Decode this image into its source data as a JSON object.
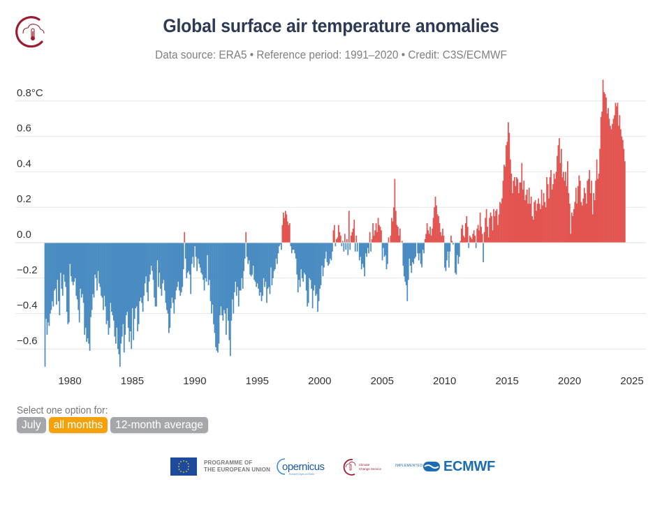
{
  "header": {
    "title": "Global surface air temperature anomalies",
    "subtitle": "Data source: ERA5 • Reference period: 1991–2020 • Credit: C3S/ECMWF",
    "logo": "climate-change-service-logo-icon"
  },
  "selector": {
    "label": "Select one option for:",
    "options": [
      {
        "label": "July",
        "active": false
      },
      {
        "label": "all months",
        "active": true
      },
      {
        "label": "12-month average",
        "active": false
      }
    ]
  },
  "footer": {
    "eu_text_line1": "PROGRAMME OF",
    "eu_text_line2": "THE EUROPEAN UNION",
    "copernicus": "opernicus",
    "copernicus_tagline": "Europe's eyes on Earth",
    "c3s_line1": "Climate",
    "c3s_line2": "Change Service",
    "implemented_by": "IMPLEMENTED BY",
    "ecmwf": "ECMWF"
  },
  "colors": {
    "positive": "#e35450",
    "negative": "#4a8cc2",
    "selected_option": "#f4a20c",
    "option": "#a5a7aa",
    "title": "#2d3a56"
  },
  "chart_data": {
    "type": "bar",
    "title": "Global surface air temperature anomalies",
    "subtitle": "Data source: ERA5 • Reference period: 1991–2020 • Credit: C3S/ECMWF",
    "xlabel": "",
    "ylabel": "°C",
    "ylim": [
      -0.7,
      0.9
    ],
    "y_ticks": [
      {
        "value": 0.8,
        "label": "0.8°C"
      },
      {
        "value": 0.6,
        "label": "0.6"
      },
      {
        "value": 0.4,
        "label": "0.4"
      },
      {
        "value": 0.2,
        "label": "0.2"
      },
      {
        "value": 0.0,
        "label": "0.0"
      },
      {
        "value": -0.2,
        "label": "−0.2"
      },
      {
        "value": -0.4,
        "label": "−0.4"
      },
      {
        "value": -0.6,
        "label": "−0.6"
      }
    ],
    "x_ticks": [
      "1980",
      "1985",
      "1990",
      "1995",
      "2000",
      "2005",
      "2010",
      "2015",
      "2020",
      "2025"
    ],
    "grid": true,
    "legend": "none",
    "series_frequency": "monthly",
    "start": "1979-01",
    "monthly_values_by_year": {
      "1979": [
        -0.7,
        -0.43,
        -0.52,
        -0.45,
        -0.47,
        -0.4,
        -0.38,
        -0.33,
        -0.36,
        -0.27,
        -0.26,
        -0.35
      ],
      "1980": [
        -0.21,
        -0.33,
        -0.41,
        -0.17,
        -0.26,
        -0.3,
        -0.18,
        -0.22,
        -0.25,
        -0.39,
        -0.46,
        -0.45
      ],
      "1981": [
        -0.12,
        -0.19,
        -0.22,
        -0.24,
        -0.22,
        -0.2,
        -0.3,
        -0.32,
        -0.38,
        -0.45,
        -0.26,
        -0.31
      ],
      "1982": [
        -0.29,
        -0.34,
        -0.52,
        -0.48,
        -0.56,
        -0.54,
        -0.57,
        -0.61,
        -0.42,
        -0.38,
        -0.29,
        -0.31
      ],
      "1983": [
        -0.18,
        -0.2,
        -0.27,
        -0.16,
        -0.23,
        -0.25,
        -0.3,
        -0.31,
        -0.38,
        -0.3,
        -0.36,
        -0.46
      ],
      "1984": [
        -0.44,
        -0.52,
        -0.48,
        -0.34,
        -0.39,
        -0.41,
        -0.44,
        -0.53,
        -0.57,
        -0.48,
        -0.6,
        -0.63
      ],
      "1985": [
        -0.7,
        -0.57,
        -0.53,
        -0.46,
        -0.62,
        -0.52,
        -0.41,
        -0.39,
        -0.48,
        -0.56,
        -0.5,
        -0.6
      ],
      "1986": [
        -0.37,
        -0.55,
        -0.43,
        -0.37,
        -0.36,
        -0.5,
        -0.46,
        -0.33,
        -0.31,
        -0.34,
        -0.39,
        -0.3
      ],
      "1987": [
        -0.23,
        -0.19,
        -0.28,
        -0.33,
        -0.22,
        -0.18,
        -0.13,
        -0.16,
        -0.21,
        -0.31,
        -0.36,
        -0.36
      ],
      "1988": [
        -0.1,
        -0.25,
        -0.17,
        -0.26,
        -0.3,
        -0.23,
        -0.21,
        -0.27,
        -0.34,
        -0.38,
        -0.4,
        -0.51
      ],
      "1989": [
        -0.48,
        -0.37,
        -0.31,
        -0.34,
        -0.4,
        -0.32,
        -0.27,
        -0.25,
        -0.22,
        -0.27,
        -0.3,
        -0.28
      ],
      "1990": [
        -0.25,
        -0.15,
        0.06,
        -0.09,
        -0.2,
        -0.17,
        -0.16,
        -0.18,
        -0.29,
        -0.12,
        -0.08,
        -0.14
      ],
      "1991": [
        -0.02,
        -0.08,
        -0.16,
        -0.09,
        -0.12,
        -0.14,
        -0.17,
        -0.18,
        -0.21,
        -0.27,
        -0.2,
        -0.22
      ],
      "1992": [
        -0.07,
        -0.24,
        -0.21,
        -0.33,
        -0.4,
        -0.35,
        -0.46,
        -0.51,
        -0.59,
        -0.61,
        -0.62,
        -0.57
      ],
      "1993": [
        -0.41,
        -0.36,
        -0.41,
        -0.44,
        -0.38,
        -0.4,
        -0.52,
        -0.37,
        -0.44,
        -0.55,
        -0.64,
        -0.44
      ],
      "1994": [
        -0.32,
        -0.4,
        -0.28,
        -0.22,
        -0.3,
        -0.25,
        -0.36,
        -0.27,
        -0.27,
        -0.2,
        -0.26,
        -0.16
      ],
      "1995": [
        -0.09,
        0.06,
        -0.08,
        -0.12,
        -0.1,
        -0.18,
        -0.19,
        -0.18,
        -0.13,
        -0.21,
        -0.22,
        -0.25
      ],
      "1996": [
        -0.23,
        -0.26,
        -0.3,
        -0.28,
        -0.33,
        -0.3,
        -0.2,
        -0.25,
        -0.22,
        -0.34,
        -0.26,
        -0.25
      ],
      "1997": [
        -0.29,
        -0.14,
        -0.24,
        -0.2,
        -0.16,
        -0.15,
        -0.09,
        -0.12,
        -0.06,
        -0.02,
        -0.01,
        -0.04
      ],
      "1998": [
        0.1,
        0.17,
        0.14,
        0.18,
        0.16,
        0.12,
        0.1,
        0.11,
        -0.02,
        -0.06,
        -0.04,
        -0.04
      ],
      "1999": [
        -0.06,
        -0.09,
        -0.18,
        -0.28,
        -0.21,
        -0.25,
        -0.15,
        -0.2,
        -0.22,
        -0.17,
        -0.18,
        -0.27
      ],
      "2000": [
        -0.36,
        -0.34,
        -0.2,
        -0.21,
        -0.26,
        -0.37,
        -0.27,
        -0.24,
        -0.3,
        -0.29,
        -0.39,
        -0.33
      ],
      "2001": [
        -0.26,
        -0.24,
        -0.13,
        -0.19,
        -0.14,
        -0.09,
        -0.05,
        -0.11,
        -0.13,
        -0.12,
        -0.09,
        -0.1
      ],
      "2002": [
        -0.05,
        0.07,
        0.1,
        -0.02,
        0.02,
        0.03,
        0.1,
        0.06,
        0.04,
        -0.02,
        0.01,
        -0.05
      ],
      "2003": [
        0.05,
        -0.04,
        0.02,
        -0.07,
        0.18,
        -0.04,
        0.04,
        0.06,
        0.08,
        0.13,
        -0.05,
        0.04
      ],
      "2004": [
        -0.05,
        0.0,
        -0.1,
        -0.08,
        -0.15,
        -0.12,
        -0.14,
        -0.19,
        -0.06,
        -0.08,
        -0.03,
        -0.06
      ],
      "2005": [
        0.06,
        -0.05,
        0.02,
        0.11,
        0.04,
        0.07,
        0.11,
        0.06,
        0.14,
        0.1,
        0.09,
        0.07
      ],
      "2006": [
        -0.1,
        -0.03,
        -0.08,
        -0.07,
        -0.15,
        -0.12,
        0.03,
        0.0,
        0.04,
        0.14,
        0.12,
        0.2
      ],
      "2007": [
        0.36,
        0.18,
        0.1,
        0.09,
        0.04,
        0.08,
        0.0,
        0.01,
        -0.13,
        -0.19,
        -0.22,
        -0.24
      ],
      "2008": [
        -0.33,
        -0.21,
        -0.09,
        -0.13,
        -0.17,
        -0.11,
        -0.12,
        -0.09,
        -0.08,
        0.0,
        -0.06,
        -0.1
      ],
      "2009": [
        -0.06,
        -0.12,
        -0.14,
        -0.04,
        -0.06,
        0.02,
        0.05,
        0.11,
        0.07,
        0.05,
        0.09,
        0.04
      ],
      "2010": [
        0.08,
        0.14,
        0.2,
        0.26,
        0.21,
        0.16,
        0.15,
        0.11,
        0.06,
        0.04,
        0.08,
        0.04
      ],
      "2011": [
        -0.14,
        -0.16,
        -0.1,
        -0.05,
        -0.14,
        -0.05,
        0.04,
        0.01,
        -0.01,
        0.0,
        -0.17,
        -0.18
      ],
      "2012": [
        -0.07,
        -0.12,
        -0.08,
        0.01,
        0.08,
        0.1,
        0.04,
        0.03,
        0.11,
        0.15,
        0.09,
        -0.03
      ],
      "2013": [
        0.04,
        0.03,
        0.02,
        0.05,
        0.07,
        0.04,
        -0.03,
        0.08,
        0.1,
        0.07,
        0.17,
        0.09
      ],
      "2014": [
        0.05,
        -0.11,
        0.06,
        0.14,
        0.19,
        0.09,
        0.03,
        0.14,
        0.17,
        0.15,
        0.07,
        0.19
      ],
      "2015": [
        0.15,
        0.18,
        0.19,
        0.1,
        0.16,
        0.23,
        0.22,
        0.25,
        0.35,
        0.44,
        0.43,
        0.55
      ],
      "2016": [
        0.57,
        0.68,
        0.62,
        0.47,
        0.39,
        0.28,
        0.35,
        0.37,
        0.32,
        0.37,
        0.36,
        0.28
      ],
      "2017": [
        0.34,
        0.34,
        0.45,
        0.3,
        0.35,
        0.24,
        0.27,
        0.3,
        0.22,
        0.31,
        0.22,
        0.26
      ],
      "2018": [
        0.15,
        0.13,
        0.23,
        0.24,
        0.18,
        0.22,
        0.25,
        0.22,
        0.19,
        0.3,
        0.21,
        0.28
      ],
      "2019": [
        0.23,
        0.2,
        0.37,
        0.33,
        0.25,
        0.37,
        0.41,
        0.3,
        0.33,
        0.39,
        0.36,
        0.4
      ],
      "2020": [
        0.49,
        0.55,
        0.59,
        0.45,
        0.53,
        0.37,
        0.4,
        0.35,
        0.4,
        0.32,
        0.46,
        0.28
      ],
      "2021": [
        0.22,
        0.05,
        0.17,
        0.15,
        0.19,
        0.23,
        0.31,
        0.22,
        0.32,
        0.38,
        0.35,
        0.23
      ],
      "2022": [
        0.21,
        0.25,
        0.31,
        0.28,
        0.22,
        0.35,
        0.36,
        0.41,
        0.28,
        0.35,
        0.16,
        0.28
      ],
      "2023": [
        0.24,
        0.35,
        0.47,
        0.36,
        0.39,
        0.53,
        0.71,
        0.74,
        0.92,
        0.85,
        0.84,
        0.82
      ],
      "2024": [
        0.73,
        0.76,
        0.7,
        0.66,
        0.64,
        0.67,
        0.7,
        0.72,
        0.79,
        0.77,
        0.79,
        0.66
      ],
      "2025": [
        0.72,
        0.64,
        0.6,
        0.58,
        0.53,
        0.46
      ]
    }
  }
}
